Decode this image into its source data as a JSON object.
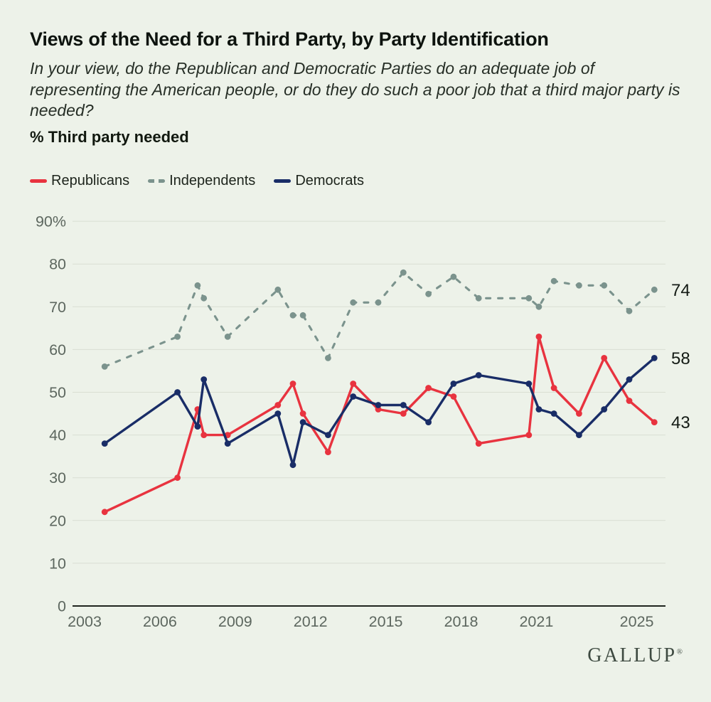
{
  "header": {
    "title": "Views of the Need for a Third Party, by Party Identification",
    "question": "In your view, do the Republican and Democratic Parties do an adequate job of representing the American people, or do they do such a poor job that a third major party is needed?",
    "metric_label": "% Third party needed"
  },
  "legend": {
    "items": [
      {
        "label": "Republicans",
        "color": "#e8333f",
        "style": "solid"
      },
      {
        "label": "Independents",
        "color": "#7b938d",
        "style": "dashed"
      },
      {
        "label": "Democrats",
        "color": "#192d67",
        "style": "solid"
      }
    ]
  },
  "chart_data": {
    "type": "line",
    "title": "Views of the Need for a Third Party, by Party Identification",
    "subtitle": "In your view, do the Republican and Democratic Parties do an adequate job of representing the American people, or do they do such a poor job that a third major party is needed?",
    "ylabel": "% Third party needed",
    "grid": true,
    "legend_position": "top-left",
    "x_axis": {
      "ticks": [
        2003,
        2006,
        2009,
        2012,
        2015,
        2018,
        2021,
        2025
      ],
      "range": [
        2002.5,
        2026.3
      ]
    },
    "y_axis": {
      "ticks": [
        0,
        10,
        20,
        30,
        40,
        50,
        60,
        70,
        80,
        90
      ],
      "top_label": "90%",
      "range": [
        0,
        90
      ]
    },
    "x": [
      2003.8,
      2006.7,
      2007.5,
      2007.75,
      2008.7,
      2010.7,
      2011.3,
      2011.7,
      2012.7,
      2013.7,
      2014.7,
      2015.7,
      2016.7,
      2017.7,
      2018.7,
      2020.7,
      2021.1,
      2021.7,
      2022.7,
      2023.7,
      2024.7,
      2025.7
    ],
    "series": [
      {
        "name": "Independents",
        "color": "#7b938d",
        "style": "dashed",
        "values": [
          56,
          63,
          75,
          72,
          63,
          74,
          68,
          68,
          58,
          71,
          71,
          78,
          73,
          77,
          72,
          72,
          70,
          76,
          75,
          75,
          69,
          74
        ],
        "end_label": "74"
      },
      {
        "name": "Republicans",
        "color": "#e8333f",
        "style": "solid",
        "values": [
          22,
          30,
          46,
          40,
          40,
          47,
          52,
          45,
          36,
          52,
          46,
          45,
          51,
          49,
          38,
          40,
          63,
          51,
          45,
          58,
          48,
          43
        ],
        "end_label": "43"
      },
      {
        "name": "Democrats",
        "color": "#192d67",
        "style": "solid",
        "values": [
          38,
          50,
          42,
          53,
          38,
          45,
          33,
          43,
          40,
          49,
          47,
          47,
          43,
          52,
          54,
          52,
          46,
          45,
          40,
          46,
          53,
          58
        ],
        "end_label": "58"
      }
    ],
    "colors": {
      "background": "#edf2e9",
      "gridline": "#d9ded3",
      "axis": "#20251f",
      "tick_text": "#5d675f",
      "end_label_text": "#141b15"
    }
  },
  "footer": {
    "brand": "GALLUP",
    "registered": "®"
  }
}
